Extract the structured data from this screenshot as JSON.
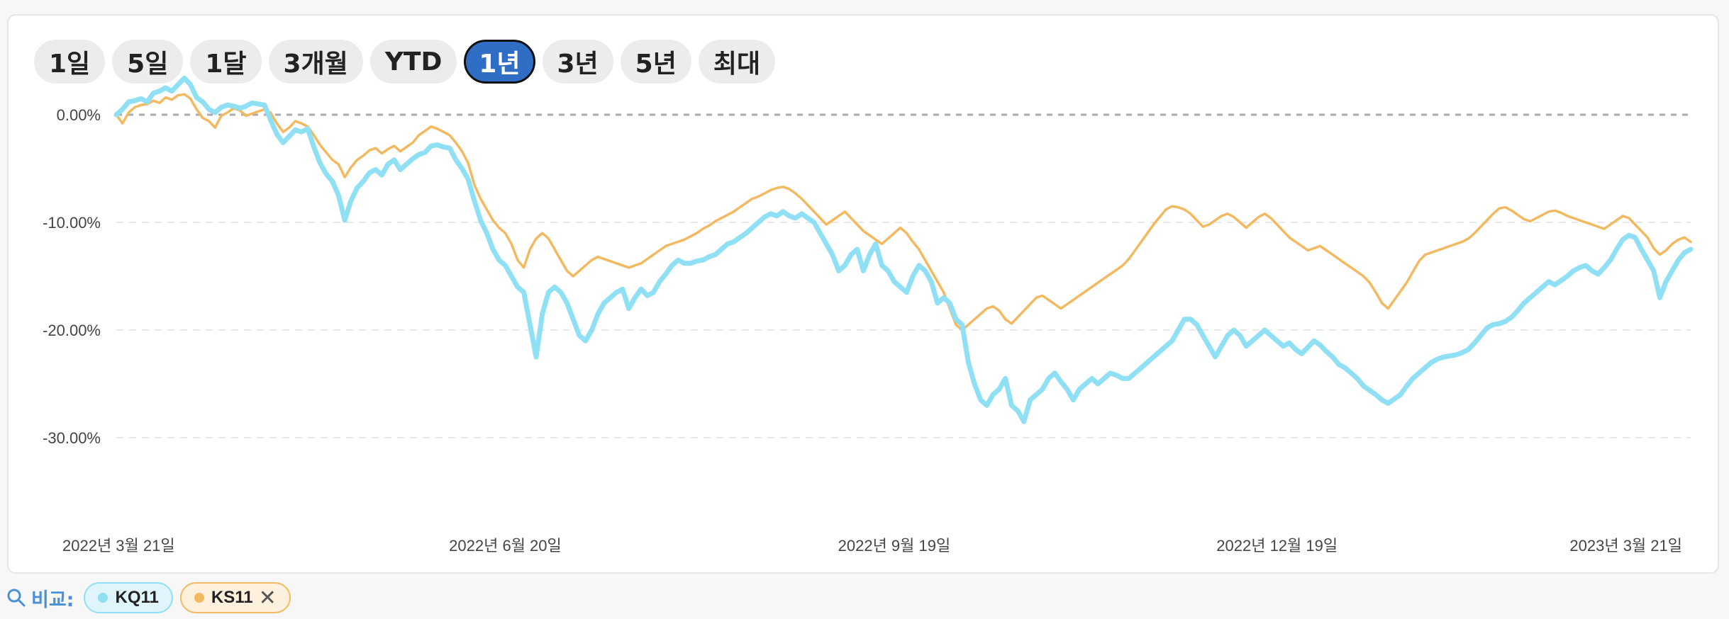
{
  "range_buttons": [
    {
      "label": "1일",
      "active": false
    },
    {
      "label": "5일",
      "active": false
    },
    {
      "label": "1달",
      "active": false
    },
    {
      "label": "3개월",
      "active": false
    },
    {
      "label": "YTD",
      "active": false
    },
    {
      "label": "1년",
      "active": true
    },
    {
      "label": "3년",
      "active": false
    },
    {
      "label": "5년",
      "active": false
    },
    {
      "label": "최대",
      "active": false
    }
  ],
  "compare": {
    "label": "비교:",
    "chips": [
      {
        "symbol": "KQ11",
        "color": "#8fdff5",
        "removable": false
      },
      {
        "symbol": "KS11",
        "color": "#f2b961",
        "removable": true
      }
    ]
  },
  "chart_data": {
    "type": "line",
    "y_ticks": [
      "0.00%",
      "-10.00%",
      "-20.00%",
      "-30.00%"
    ],
    "y_tick_values": [
      0,
      -10,
      -20,
      -30
    ],
    "ylim": [
      -31.5,
      4.5
    ],
    "x_ticks": [
      "2022년 3월 21일",
      "2022년 6월 20일",
      "2022년 9월 19일",
      "2022년 12월 19일",
      "2023년 3월 21일"
    ],
    "x_tick_index": [
      0,
      63,
      126,
      188,
      250
    ],
    "zero_line": "dashed",
    "grid": true,
    "series": [
      {
        "name": "KQ11",
        "color": "#8fdff5",
        "values": [
          0,
          0.5,
          1.2,
          1.3,
          1.5,
          1.2,
          2,
          2.2,
          2.5,
          2.2,
          2.8,
          3.4,
          2.8,
          1.6,
          1.2,
          0.5,
          0.2,
          0.7,
          0.9,
          0.8,
          0.6,
          0.8,
          1.1,
          1,
          0.9,
          -0.5,
          -1.8,
          -2.6,
          -2,
          -1.4,
          -1.6,
          -1.3,
          -3,
          -4.5,
          -5.5,
          -6.2,
          -7.5,
          -9.8,
          -8,
          -6.8,
          -6.2,
          -5.4,
          -5.1,
          -5.6,
          -4.6,
          -4.2,
          -5.1,
          -4.6,
          -4.1,
          -3.7,
          -3.5,
          -2.9,
          -2.8,
          -3,
          -3.1,
          -4.2,
          -5,
          -6,
          -8,
          -9.8,
          -11,
          -12.5,
          -13.5,
          -14,
          -15,
          -16,
          -16.5,
          -19.5,
          -22.5,
          -18.5,
          -16.5,
          -16,
          -16.5,
          -17.5,
          -19,
          -20.5,
          -21,
          -20,
          -18.5,
          -17.5,
          -17,
          -16.5,
          -16.2,
          -18,
          -17,
          -16.2,
          -16.8,
          -16.5,
          -15.5,
          -14.8,
          -14,
          -13.5,
          -13.8,
          -13.8,
          -13.6,
          -13.5,
          -13.2,
          -13,
          -12.5,
          -12,
          -11.8,
          -11.4,
          -11,
          -10.5,
          -10,
          -9.5,
          -9.2,
          -9.4,
          -9,
          -9.4,
          -9.6,
          -9.2,
          -9.6,
          -10,
          -11,
          -12,
          -13,
          -14.5,
          -14,
          -13,
          -12.5,
          -14.5,
          -13,
          -12,
          -14,
          -14.5,
          -15.5,
          -16,
          -16.5,
          -15,
          -14,
          -14.5,
          -15.5,
          -17.5,
          -17,
          -17.5,
          -19,
          -19.5,
          -23,
          -25,
          -26.5,
          -27,
          -26,
          -25.5,
          -24.5,
          -27,
          -27.5,
          -28.5,
          -26.5,
          -26,
          -25.5,
          -24.5,
          -24,
          -24.8,
          -25.5,
          -26.5,
          -25.5,
          -25,
          -24.5,
          -25,
          -24.5,
          -24,
          -24.2,
          -24.5,
          -24.5,
          -24,
          -23.5,
          -23,
          -22.5,
          -22,
          -21.5,
          -21,
          -20,
          -19,
          -19,
          -19.5,
          -20.5,
          -21.5,
          -22.5,
          -21.5,
          -20.5,
          -20,
          -20.5,
          -21.5,
          -21,
          -20.5,
          -20,
          -20.5,
          -21,
          -21.5,
          -21.2,
          -21.8,
          -22.2,
          -21.6,
          -21,
          -21.4,
          -22,
          -22.5,
          -23.2,
          -23.5,
          -24,
          -24.5,
          -25.2,
          -25.6,
          -26,
          -26.5,
          -26.8,
          -26.4,
          -26,
          -25.2,
          -24.5,
          -24,
          -23.5,
          -23,
          -22.7,
          -22.5,
          -22.4,
          -22.3,
          -22.1,
          -21.8,
          -21.2,
          -20.5,
          -19.8,
          -19.5,
          -19.4,
          -19.2,
          -18.8,
          -18.2,
          -17.5,
          -17,
          -16.5,
          -16,
          -15.5,
          -15.8,
          -15.4,
          -15,
          -14.5,
          -14.2,
          -14,
          -14.5,
          -14.8,
          -14.2,
          -13.5,
          -12.5,
          -11.6,
          -11.2,
          -11.4,
          -12.5,
          -13.5,
          -14.5,
          -17,
          -15.5,
          -14.5,
          -13.5,
          -12.8,
          -12.5
        ]
      },
      {
        "name": "KS11",
        "color": "#f2b961",
        "values": [
          0,
          -0.8,
          0.2,
          0.7,
          0.9,
          1,
          1.3,
          1.1,
          1.6,
          1.4,
          1.8,
          1.9,
          1.5,
          0.5,
          -0.3,
          -0.6,
          -1.2,
          -0.1,
          0.2,
          0.6,
          0.4,
          -0.1,
          0.1,
          0.3,
          0.5,
          0.2,
          -0.8,
          -1.6,
          -1.2,
          -0.6,
          -0.8,
          -1.1,
          -1.9,
          -2.8,
          -3.5,
          -4.2,
          -4.6,
          -5.8,
          -4.9,
          -4.2,
          -3.8,
          -3.3,
          -3.1,
          -3.6,
          -3.2,
          -2.9,
          -3.4,
          -3,
          -2.6,
          -1.9,
          -1.5,
          -1.1,
          -1.3,
          -1.6,
          -1.9,
          -2.6,
          -3.4,
          -4.5,
          -6.5,
          -7.8,
          -8.8,
          -9.8,
          -10.5,
          -11,
          -12,
          -13.5,
          -14.2,
          -12.5,
          -11.5,
          -11,
          -11.5,
          -12.5,
          -13.5,
          -14.5,
          -15,
          -14.5,
          -14,
          -13.5,
          -13.2,
          -13.4,
          -13.6,
          -13.8,
          -14,
          -14.2,
          -14,
          -13.8,
          -13.4,
          -13,
          -12.6,
          -12.2,
          -12,
          -11.8,
          -11.6,
          -11.3,
          -11,
          -10.6,
          -10.3,
          -9.9,
          -9.6,
          -9.3,
          -9,
          -8.6,
          -8.2,
          -7.8,
          -7.6,
          -7.3,
          -7,
          -6.8,
          -6.7,
          -6.9,
          -7.3,
          -7.8,
          -8.4,
          -9,
          -9.6,
          -10.2,
          -9.8,
          -9.4,
          -9,
          -9.6,
          -10.2,
          -10.8,
          -11.2,
          -11.6,
          -12,
          -11.5,
          -11,
          -10.5,
          -11,
          -11.8,
          -12.5,
          -13.5,
          -14.5,
          -15.5,
          -16.5,
          -18,
          -19.5,
          -20,
          -19.5,
          -19,
          -18.5,
          -18,
          -17.8,
          -18.2,
          -19,
          -19.4,
          -18.8,
          -18.2,
          -17.6,
          -17,
          -16.8,
          -17.2,
          -17.6,
          -18,
          -17.6,
          -17.2,
          -16.8,
          -16.4,
          -16,
          -15.6,
          -15.2,
          -14.8,
          -14.4,
          -14,
          -13.4,
          -12.6,
          -11.8,
          -11,
          -10.2,
          -9.5,
          -8.8,
          -8.5,
          -8.6,
          -8.8,
          -9.2,
          -9.8,
          -10.4,
          -10.2,
          -9.8,
          -9.4,
          -9.2,
          -9.5,
          -10,
          -10.5,
          -10,
          -9.5,
          -9.2,
          -9.6,
          -10.2,
          -10.8,
          -11.4,
          -11.8,
          -12.2,
          -12.6,
          -12.4,
          -12.2,
          -12.6,
          -13,
          -13.4,
          -13.8,
          -14.2,
          -14.6,
          -15,
          -15.6,
          -16.5,
          -17.5,
          -18,
          -17.2,
          -16.4,
          -15.6,
          -14.6,
          -13.6,
          -13,
          -12.8,
          -12.6,
          -12.4,
          -12.2,
          -12,
          -11.8,
          -11.5,
          -11,
          -10.4,
          -9.8,
          -9.2,
          -8.7,
          -8.6,
          -8.9,
          -9.3,
          -9.7,
          -9.9,
          -9.6,
          -9.3,
          -9,
          -8.9,
          -9.1,
          -9.4,
          -9.6,
          -9.8,
          -10,
          -10.2,
          -10.4,
          -10.6,
          -10.2,
          -9.8,
          -9.4,
          -9.6,
          -10.2,
          -10.8,
          -11.4,
          -12.4,
          -13,
          -12.6,
          -12,
          -11.6,
          -11.4,
          -11.8
        ]
      }
    ]
  }
}
